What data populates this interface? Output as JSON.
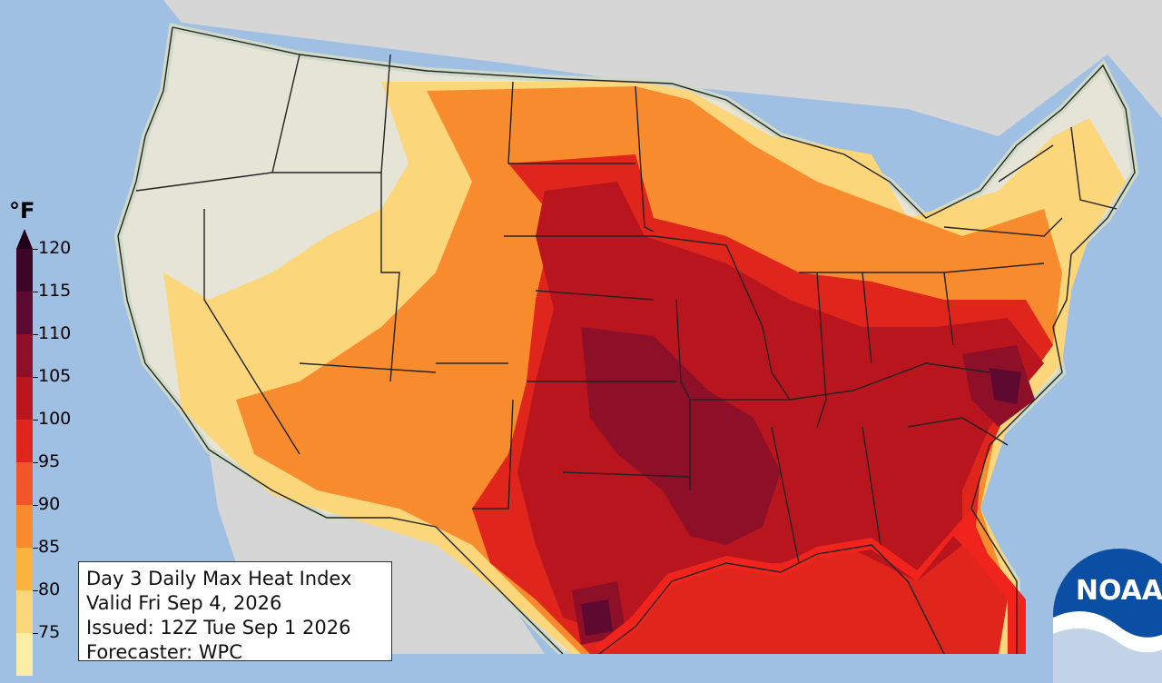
{
  "colorbar": {
    "unit": "°F",
    "ticks": [
      "120",
      "115",
      "110",
      "105",
      "100",
      "95",
      "90",
      "85",
      "80",
      "75"
    ],
    "colors": [
      "#3d0526",
      "#5e0a30",
      "#8e0f28",
      "#b8151f",
      "#e0261c",
      "#f2552a",
      "#f88b2e",
      "#fbb33d",
      "#fcd67a",
      "#fdeda6"
    ]
  },
  "info": {
    "line1": "Day 3 Daily Max Heat Index",
    "line2": "Valid Fri Sep 4, 2026",
    "line3": "Issued: 12Z Tue Sep 1 2026",
    "line4": "Forecaster: WPC"
  },
  "logo": {
    "text": "NOAA",
    "icon": "noaa-logo-icon"
  },
  "map_colors": {
    "ocean": "#9fbfe3",
    "land_outside": "#d6d6d6",
    "below_threshold": "#e6e4d6"
  }
}
